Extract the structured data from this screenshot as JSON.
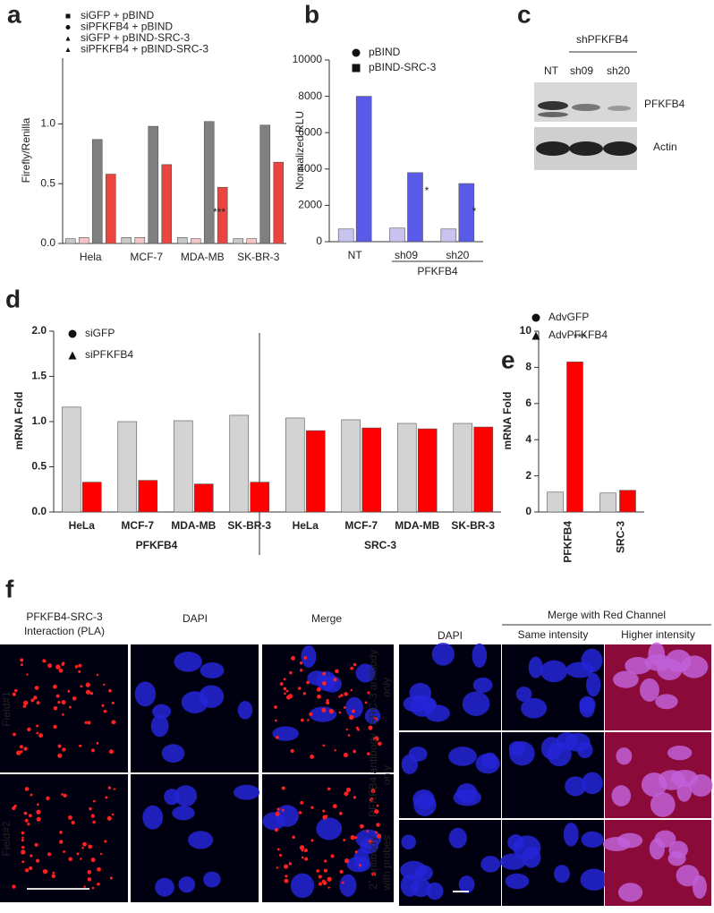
{
  "panel_labels": [
    "a",
    "b",
    "c",
    "d",
    "e",
    "f"
  ],
  "chart_data": [
    {
      "type": "bar",
      "y_label": "Firefly/Renilla",
      "categories": [
        "Hela",
        "MCF-7",
        "MDA-MB",
        "SK-BR-3"
      ],
      "series": [
        {
          "name": "siGFP + pBIND",
          "color": "#c8c8c8",
          "values": [
            0.04,
            0.05,
            0.05,
            0.04
          ]
        },
        {
          "name": "siPFKFB4 + pBIND",
          "color": "#f4c6c6",
          "values": [
            0.05,
            0.05,
            0.04,
            0.04
          ]
        },
        {
          "name": "siGFP + pBIND-SRC-3",
          "color": "#808080",
          "values": [
            0.87,
            0.98,
            1.02,
            0.99
          ]
        },
        {
          "name": "siPFKFB4 + pBIND-SRC-3",
          "color": "#e8463f",
          "values": [
            0.58,
            0.66,
            0.47,
            0.68
          ]
        }
      ],
      "ylim": [
        0,
        1.55
      ],
      "yticks": [
        {
          "value": 0,
          "label": "0.0"
        },
        0.5,
        {
          "value": 1,
          "label": "1.0"
        }
      ],
      "annotations": [
        "***"
      ]
    },
    {
      "type": "bar",
      "y_label": "Normalized RLU",
      "categories": [
        "NT",
        "sh09",
        "sh20"
      ],
      "x_group_label": "PFKFB4",
      "series": [
        {
          "name": "pBIND",
          "color": "#c9c3f0",
          "values": [
            700,
            750,
            700
          ]
        },
        {
          "name": "pBIND-SRC-3",
          "color": "#5a5ae8",
          "values": [
            8000,
            3800,
            3200
          ]
        }
      ],
      "ylim": [
        0,
        10000
      ],
      "yticks": [
        0,
        2000,
        4000,
        6000,
        8000,
        10000
      ],
      "annotations": [
        "*",
        "*"
      ]
    },
    {
      "type": "bar",
      "y_label": "mRNA Fold",
      "categories": [
        "HeLa",
        "MCF-7",
        "MDA-MB",
        "SK-BR-3",
        "HeLa",
        "MCF-7",
        "MDA-MB",
        "SK-BR-3"
      ],
      "group_labels": [
        "PFKFB4",
        "SRC-3"
      ],
      "series": [
        {
          "name": "siGFP",
          "color": "#d3d3d3",
          "values": [
            1.16,
            1.0,
            1.01,
            1.07,
            1.04,
            1.02,
            0.98,
            0.98
          ]
        },
        {
          "name": "siPFKFB4",
          "color": "#ff0000",
          "values": [
            0.33,
            0.35,
            0.31,
            0.33,
            0.9,
            0.93,
            0.92,
            0.94
          ]
        }
      ],
      "ylim": [
        0,
        2
      ],
      "yticks": [
        {
          "value": 0,
          "label": "0.0"
        },
        0.5,
        {
          "value": 1,
          "label": "1.0"
        },
        1.5,
        {
          "value": 2,
          "label": "2.0"
        }
      ],
      "annotations": []
    },
    {
      "type": "bar",
      "y_label": "mRNA Fold",
      "categories": [
        "PFKFB4",
        "SRC-3"
      ],
      "series": [
        {
          "name": "AdvGFP",
          "color": "#d3d3d3",
          "values": [
            1.1,
            1.05
          ]
        },
        {
          "name": "AdvPFKFB4",
          "color": "#ff0000",
          "values": [
            8.3,
            1.2
          ]
        }
      ],
      "ylim": [
        0,
        10
      ],
      "yticks": [
        0,
        2,
        4,
        6,
        8,
        10
      ],
      "annotations": [
        "***"
      ]
    }
  ],
  "blot": {
    "group_label": "shPFKFB4",
    "lanes": [
      "NT",
      "sh09",
      "sh20"
    ],
    "bands": [
      "PFKFB4",
      "Actin"
    ]
  },
  "microscopy": {
    "left": {
      "columns": [
        [
          "PFKFB4-SRC-3",
          "Interaction (PLA)"
        ],
        [
          "DAPI"
        ],
        [
          "Merge"
        ]
      ],
      "rows": [
        "Field#1",
        "Field#2"
      ]
    },
    "right": {
      "header": "Merge with Red Channel",
      "columns": [
        "DAPI",
        "Same intensity",
        "Higher intensity"
      ],
      "rows": [
        [
          "SRC-3 antibody",
          "only"
        ],
        [
          "PFKFB4 antibody",
          "only"
        ],
        [
          "2˚ antibody",
          "with probes"
        ]
      ]
    }
  }
}
